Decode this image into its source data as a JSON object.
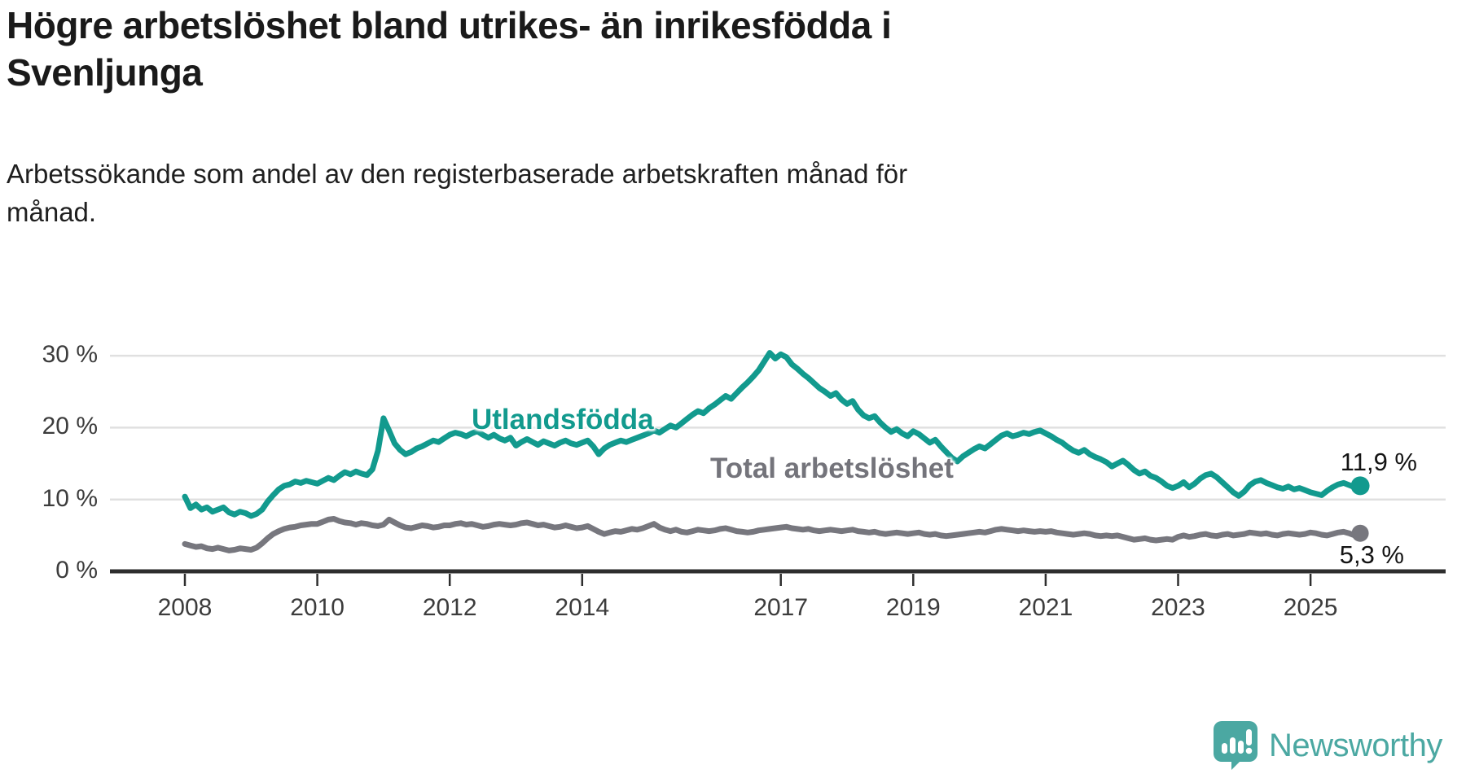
{
  "header": {
    "title": "Högre arbetslöshet bland utrikes- än inrikesfödda i\nSvenljunga",
    "subtitle": "Arbetssökande som andel av den registerbaserade arbetskraften månad för\nmånad."
  },
  "chart_data": {
    "type": "line",
    "title": "Högre arbetslöshet bland utrikes- än inrikesfödda i Svenljunga",
    "subtitle": "Arbetssökande som andel av den registerbaserade arbetskraften månad för månad.",
    "x_axis": {
      "ticks": [
        2008,
        2010,
        2012,
        2014,
        2017,
        2019,
        2021,
        2023,
        2025
      ],
      "tick_labels": [
        "2008",
        "2010",
        "2012",
        "2014",
        "2017",
        "2019",
        "2021",
        "2023",
        "2025"
      ],
      "range": [
        2007.4,
        2026.6
      ]
    },
    "y_axis": {
      "ticks": [
        0,
        10,
        20,
        30
      ],
      "tick_labels": [
        "0 %",
        "10 %",
        "20 %",
        "30 %"
      ],
      "range": [
        0,
        33
      ],
      "grid": true
    },
    "colors": {
      "utlandsfodda": "#129a8e",
      "total": "#77777e",
      "grid": "#e0e0e0",
      "axis": "#2e2e2e"
    },
    "series": [
      {
        "name": "Utlandsfödda",
        "color": "#129a8e",
        "end_label": "11,9 %",
        "end_value": 11.9,
        "start_year": 2008,
        "frequency": "monthly",
        "values": [
          10.4,
          8.8,
          9.3,
          8.6,
          8.9,
          8.3,
          8.6,
          8.9,
          8.2,
          7.9,
          8.3,
          8.1,
          7.7,
          8.0,
          8.6,
          9.7,
          10.6,
          11.4,
          11.9,
          12.1,
          12.5,
          12.3,
          12.6,
          12.4,
          12.2,
          12.6,
          13.0,
          12.7,
          13.3,
          13.8,
          13.5,
          13.9,
          13.6,
          13.4,
          14.2,
          16.8,
          21.3,
          19.6,
          17.8,
          16.9,
          16.3,
          16.6,
          17.1,
          17.4,
          17.8,
          18.2,
          18.0,
          18.5,
          19.0,
          19.3,
          19.1,
          18.8,
          19.2,
          19.5,
          19.0,
          18.6,
          19.0,
          18.5,
          18.2,
          18.6,
          17.5,
          18.0,
          18.4,
          18.0,
          17.6,
          18.1,
          17.8,
          17.5,
          17.9,
          18.2,
          17.8,
          17.6,
          17.9,
          18.2,
          17.4,
          16.3,
          17.1,
          17.6,
          17.9,
          18.2,
          18.0,
          18.3,
          18.6,
          18.9,
          19.2,
          19.6,
          19.3,
          19.8,
          20.3,
          20.0,
          20.6,
          21.2,
          21.8,
          22.3,
          22.0,
          22.7,
          23.2,
          23.8,
          24.4,
          24.0,
          24.8,
          25.6,
          26.3,
          27.1,
          28.0,
          29.2,
          30.4,
          29.6,
          30.2,
          29.8,
          28.8,
          28.2,
          27.5,
          26.9,
          26.2,
          25.5,
          25.0,
          24.4,
          24.8,
          23.9,
          23.3,
          23.7,
          22.5,
          21.7,
          21.3,
          21.6,
          20.7,
          20.0,
          19.4,
          19.8,
          19.2,
          18.8,
          19.5,
          19.1,
          18.5,
          17.9,
          18.3,
          17.4,
          16.6,
          15.8,
          15.3,
          16.0,
          16.5,
          17.0,
          17.4,
          17.1,
          17.7,
          18.3,
          18.9,
          19.2,
          18.8,
          19.0,
          19.3,
          19.1,
          19.4,
          19.6,
          19.2,
          18.8,
          18.3,
          17.9,
          17.3,
          16.8,
          16.5,
          16.9,
          16.3,
          15.9,
          15.6,
          15.2,
          14.6,
          15.0,
          15.4,
          14.8,
          14.1,
          13.6,
          13.9,
          13.3,
          13.0,
          12.5,
          11.9,
          11.6,
          11.9,
          12.4,
          11.7,
          12.2,
          12.9,
          13.4,
          13.6,
          13.1,
          12.4,
          11.7,
          11.0,
          10.5,
          11.1,
          12.0,
          12.5,
          12.7,
          12.3,
          12.0,
          11.7,
          11.5,
          11.8,
          11.4,
          11.6,
          11.3,
          11.0,
          10.8,
          10.6,
          11.2,
          11.7,
          12.1,
          12.3,
          12.0,
          11.7,
          11.9
        ]
      },
      {
        "name": "Total arbetslöshet",
        "color": "#77777e",
        "end_label": "5,3 %",
        "end_value": 5.3,
        "start_year": 2008,
        "frequency": "monthly",
        "values": [
          3.8,
          3.6,
          3.4,
          3.5,
          3.2,
          3.1,
          3.3,
          3.1,
          2.9,
          3.0,
          3.2,
          3.1,
          3.0,
          3.3,
          3.9,
          4.6,
          5.2,
          5.6,
          5.9,
          6.1,
          6.2,
          6.4,
          6.5,
          6.6,
          6.6,
          6.9,
          7.2,
          7.3,
          7.0,
          6.8,
          6.7,
          6.5,
          6.7,
          6.6,
          6.4,
          6.3,
          6.5,
          7.2,
          6.8,
          6.4,
          6.1,
          6.0,
          6.2,
          6.4,
          6.3,
          6.1,
          6.2,
          6.4,
          6.4,
          6.6,
          6.7,
          6.5,
          6.6,
          6.4,
          6.2,
          6.3,
          6.5,
          6.6,
          6.5,
          6.4,
          6.5,
          6.7,
          6.8,
          6.6,
          6.4,
          6.5,
          6.3,
          6.1,
          6.2,
          6.4,
          6.2,
          6.0,
          6.1,
          6.3,
          5.9,
          5.5,
          5.2,
          5.4,
          5.6,
          5.5,
          5.7,
          5.9,
          5.8,
          6.0,
          6.3,
          6.6,
          6.1,
          5.8,
          5.6,
          5.8,
          5.5,
          5.4,
          5.6,
          5.8,
          5.7,
          5.6,
          5.7,
          5.9,
          6.0,
          5.8,
          5.6,
          5.5,
          5.4,
          5.5,
          5.7,
          5.8,
          5.9,
          6.0,
          6.1,
          6.2,
          6.0,
          5.9,
          5.8,
          5.9,
          5.7,
          5.6,
          5.7,
          5.8,
          5.7,
          5.6,
          5.7,
          5.8,
          5.6,
          5.5,
          5.4,
          5.5,
          5.3,
          5.2,
          5.3,
          5.4,
          5.3,
          5.2,
          5.3,
          5.4,
          5.2,
          5.1,
          5.2,
          5.0,
          4.9,
          5.0,
          5.1,
          5.2,
          5.3,
          5.4,
          5.5,
          5.4,
          5.6,
          5.8,
          5.9,
          5.8,
          5.7,
          5.6,
          5.7,
          5.6,
          5.5,
          5.6,
          5.5,
          5.6,
          5.4,
          5.3,
          5.2,
          5.1,
          5.2,
          5.3,
          5.2,
          5.0,
          4.9,
          5.0,
          4.9,
          5.0,
          4.8,
          4.6,
          4.4,
          4.5,
          4.6,
          4.4,
          4.3,
          4.4,
          4.5,
          4.4,
          4.8,
          5.0,
          4.8,
          4.9,
          5.1,
          5.2,
          5.0,
          4.9,
          5.1,
          5.2,
          5.0,
          5.1,
          5.2,
          5.4,
          5.3,
          5.2,
          5.3,
          5.1,
          5.0,
          5.2,
          5.3,
          5.2,
          5.1,
          5.2,
          5.4,
          5.3,
          5.1,
          5.0,
          5.2,
          5.4,
          5.5,
          5.3,
          5.0,
          5.3
        ]
      }
    ],
    "legend_position": "inline-labels"
  },
  "footer": {
    "brand": "Newsworthy",
    "brand_color": "#4ba8a2"
  }
}
